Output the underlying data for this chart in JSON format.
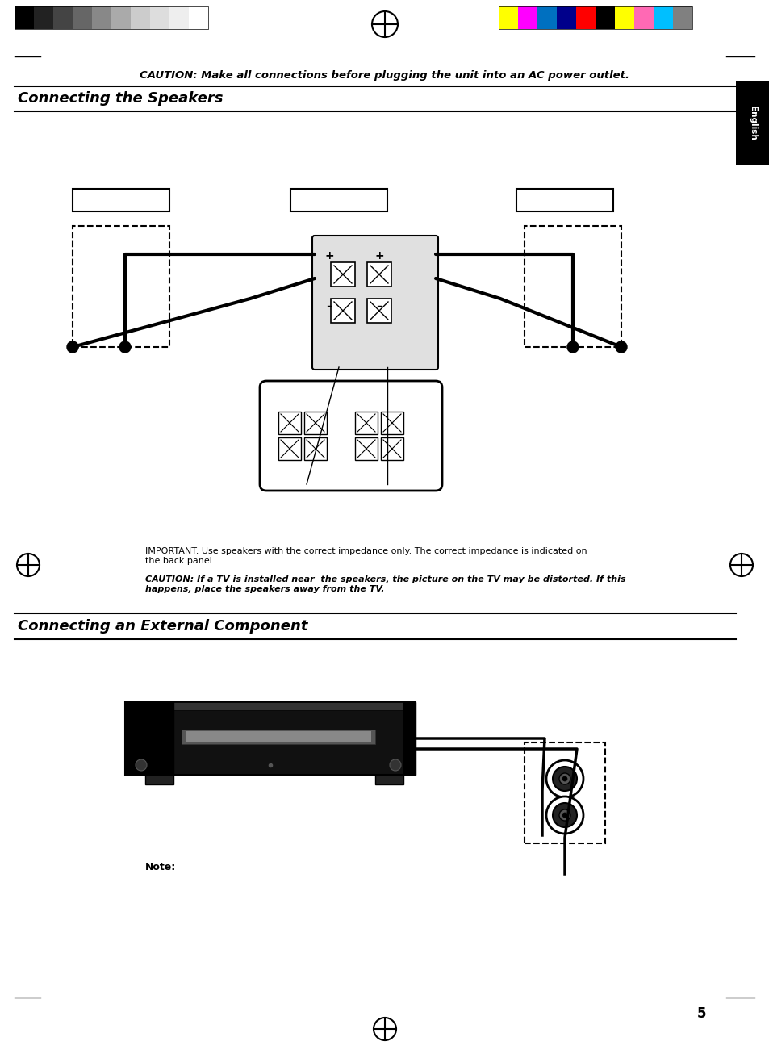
{
  "bg_color": "#ffffff",
  "page_width": 9.54,
  "page_height": 13.06,
  "caution_text": "CAUTION: Make all connections before plugging the unit into an AC power outlet.",
  "section1_title": "Connecting the Speakers",
  "section2_title": "Connecting an External Component",
  "important_text1": "IMPORTANT: Use speakers with the correct impedance only. The correct impedance is indicated on\nthe back panel.",
  "caution_text2": "CAUTION: If a TV is installed near  the speakers, the picture on the TV may be distorted. If this\nhappens, place the speakers away from the TV.",
  "note_text": "Note:",
  "page_number": "5",
  "english_tab_text": "English",
  "color_bar_colors": [
    "#ffff00",
    "#ff00ff",
    "#0070c0",
    "#00008b",
    "#ff0000",
    "#000000",
    "#ffff00",
    "#ff69b4",
    "#00bfff",
    "#808080"
  ],
  "gray_bar_colors": [
    "#000000",
    "#222222",
    "#444444",
    "#666666",
    "#888888",
    "#aaaaaa",
    "#cccccc",
    "#dddddd",
    "#eeeeee",
    "#ffffff"
  ]
}
